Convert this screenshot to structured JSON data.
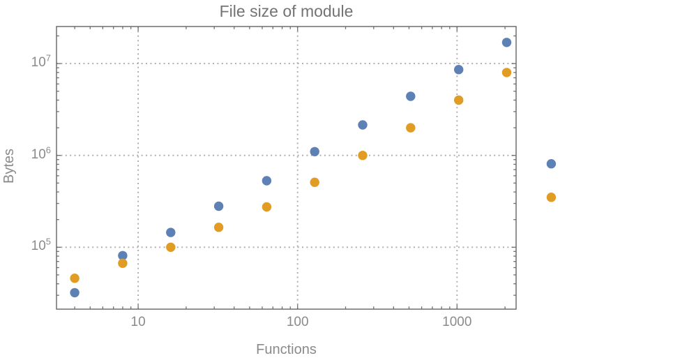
{
  "chart_data": {
    "type": "scatter",
    "title": "File size of module",
    "xlabel": "Functions",
    "ylabel": "Bytes",
    "x_scale": "log",
    "y_scale": "log",
    "xlim": [
      3.1,
      2350
    ],
    "ylim": [
      21000,
      25300000
    ],
    "grid": {
      "style": "dotted",
      "x_values": [
        10,
        100,
        1000
      ],
      "y_values": [
        100000,
        1000000,
        10000000
      ]
    },
    "legend": null,
    "x_ticks": {
      "values": [
        10,
        100,
        1000
      ],
      "labels": [
        "10",
        "100",
        "1000"
      ]
    },
    "y_ticks": {
      "values": [
        100000,
        1000000,
        10000000
      ],
      "labels": [
        {
          "base": "10",
          "exp": "5"
        },
        {
          "base": "10",
          "exp": "6"
        },
        {
          "base": "10",
          "exp": "7"
        }
      ]
    },
    "x": [
      4,
      8,
      16,
      32,
      64,
      128,
      256,
      512,
      1024,
      2048,
      3900
    ],
    "series": [
      {
        "name": "blue",
        "color": "#5E81B5",
        "values": [
          32000,
          81000,
          145000,
          280000,
          530000,
          1100000,
          2150000,
          4400000,
          8600000,
          17000000,
          810000
        ]
      },
      {
        "name": "orange",
        "color": "#E19C24",
        "values": [
          46000,
          67000,
          100000,
          165000,
          275000,
          510000,
          1000000,
          2000000,
          4000000,
          8000000,
          350000
        ]
      }
    ],
    "note": "last point pair (x~3900) is rendered outside the right edge of the plot frame"
  }
}
